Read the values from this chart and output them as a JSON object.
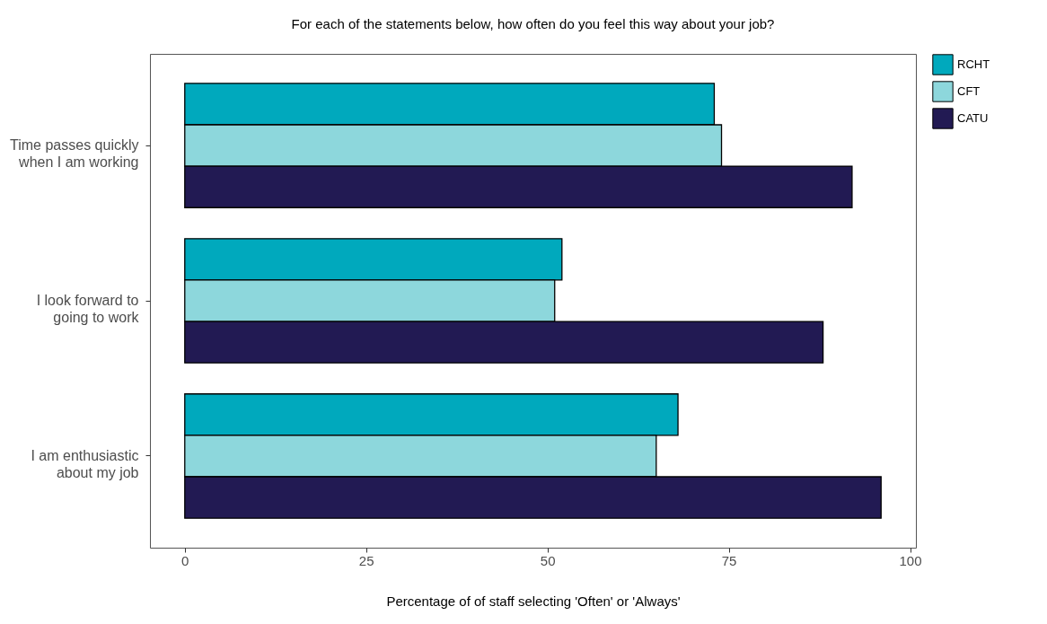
{
  "chart_data": {
    "type": "bar",
    "orientation": "horizontal",
    "title": "For each of the statements below, how often do you feel this way about your job?",
    "xlabel": "Percentage of of staff selecting 'Often' or 'Always'",
    "categories": [
      "Time passes quickly when I am working",
      "I look forward to going to work",
      "I am enthusiastic about my job"
    ],
    "series": [
      {
        "name": "RCHT",
        "color": "#00a9bd",
        "values": [
          73,
          52,
          68
        ]
      },
      {
        "name": "CFT",
        "color": "#8dd7dc",
        "values": [
          74,
          51,
          65
        ]
      },
      {
        "name": "CATU",
        "color": "#221a53",
        "values": [
          92,
          88,
          96
        ]
      }
    ],
    "xlim": [
      -4.8,
      100.8
    ],
    "xticks": [
      0,
      25,
      50,
      75,
      100
    ],
    "grid": false,
    "legend": "right"
  }
}
